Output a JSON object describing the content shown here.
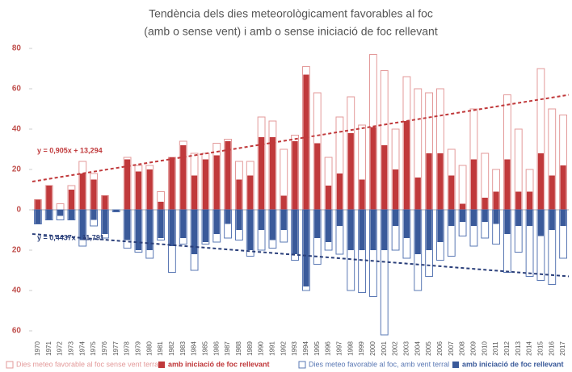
{
  "chart_data": {
    "type": "bar",
    "title": [
      "Tendència dels dies meteorològicament favorables al foc",
      "(amb o sense vent) i amb o sense iniciació de foc rellevant"
    ],
    "categories": [
      "1970",
      "1971",
      "1972",
      "1973",
      "1974",
      "1975",
      "1976",
      "1977",
      "1978",
      "1979",
      "1980",
      "1981",
      "1982",
      "1983",
      "1984",
      "1985",
      "1986",
      "1987",
      "1988",
      "1989",
      "1990",
      "1991",
      "1992",
      "1993",
      "1994",
      "1995",
      "1996",
      "1997",
      "1998",
      "1999",
      "2000",
      "2001",
      "2002",
      "2003",
      "2004",
      "2005",
      "2006",
      "2007",
      "2008",
      "2009",
      "2010",
      "2011",
      "2012",
      "2013",
      "2014",
      "2015",
      "2016",
      "2017"
    ],
    "series": [
      {
        "name": "Dies meteo favorable al foc sense vent terral",
        "color": "#e39a9a",
        "style": "outline",
        "values": [
          5,
          12,
          3,
          12,
          24,
          18,
          7,
          0,
          26,
          22,
          22,
          9,
          26,
          34,
          28,
          28,
          33,
          35,
          24,
          24,
          46,
          44,
          30,
          37,
          71,
          58,
          26,
          46,
          56,
          42,
          77,
          69,
          40,
          66,
          60,
          58,
          60,
          30,
          22,
          50,
          28,
          20,
          57,
          40,
          20,
          70,
          50,
          47
        ]
      },
      {
        "name": "amb iniciació de foc rellevant",
        "color": "#c0393b",
        "style": "solid",
        "values": [
          5,
          12,
          0,
          10,
          18,
          15,
          7,
          0,
          25,
          19,
          20,
          4,
          26,
          32,
          17,
          25,
          27,
          34,
          15,
          17,
          36,
          36,
          7,
          34,
          67,
          33,
          12,
          18,
          38,
          15,
          41,
          32,
          20,
          44,
          16,
          28,
          28,
          17,
          3,
          25,
          6,
          9,
          25,
          9,
          9,
          28,
          17,
          22
        ]
      },
      {
        "name": "Dies meteo favorable al foc, amb vent terral",
        "color": "#5a78b4",
        "style": "outline",
        "values": [
          -7,
          -5,
          -5,
          -5,
          -18,
          -8,
          -14,
          -1,
          -19,
          -21,
          -24,
          -15,
          -31,
          -17,
          -30,
          -17,
          -16,
          -14,
          -15,
          -23,
          -20,
          -19,
          -16,
          -25,
          -40,
          -27,
          -20,
          -22,
          -40,
          -41,
          -43,
          -62,
          -20,
          -24,
          -40,
          -33,
          -25,
          -23,
          -13,
          -18,
          -14,
          -17,
          -31,
          -21,
          -33,
          -35,
          -37,
          -24
        ]
      },
      {
        "name": "amb iniciació de foc rellevant",
        "color": "#3a5a9a",
        "style": "solid",
        "values": [
          -7,
          -5,
          -3,
          -5,
          -15,
          -5,
          -12,
          -1,
          -15,
          -20,
          -20,
          -14,
          -18,
          -14,
          -22,
          -16,
          -12,
          -7,
          -10,
          -20,
          -10,
          -15,
          -10,
          -22,
          -38,
          -14,
          -16,
          -8,
          -20,
          -20,
          -20,
          -20,
          -8,
          -14,
          -22,
          -20,
          -16,
          -8,
          -6,
          -8,
          -6,
          -7,
          -12,
          -8,
          -8,
          -13,
          -10,
          -8
        ]
      }
    ],
    "trendlines": [
      {
        "label": "y = 0,905x + 13,294",
        "color": "#c0393b",
        "start": 14,
        "end": 57
      },
      {
        "label": "y = 0,4437x - 11,791",
        "color": "#2a3f7a",
        "start": -12,
        "end": -33
      }
    ],
    "ylim": [
      -60,
      80
    ],
    "yticks": [
      {
        "value": -60,
        "label": "60"
      },
      {
        "value": -40,
        "label": "40"
      },
      {
        "value": -20,
        "label": "20"
      },
      0,
      20,
      40,
      60,
      80
    ],
    "tick_color": "#c0504d"
  }
}
